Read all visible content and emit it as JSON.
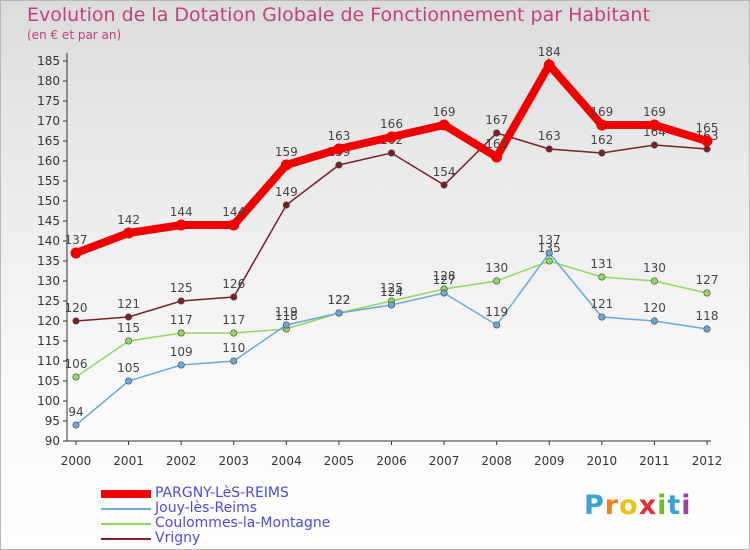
{
  "header": {
    "title": "Evolution de la Dotation Globale de Fonctionnement par Habitant",
    "subtitle": "(en € et par an)"
  },
  "logo": {
    "letters": [
      "P",
      "r",
      "o",
      "x",
      "i",
      "t",
      "i"
    ],
    "colors": [
      "#3aa0d8",
      "#f08020",
      "#e8c020",
      "#e03030",
      "#70b830",
      "#3aa0d8",
      "#a040a0"
    ]
  },
  "chart_data": {
    "type": "line",
    "title": "Evolution de la Dotation Globale de Fonctionnement par Habitant",
    "subtitle": "(en € et par an)",
    "xlabel": "",
    "ylabel": "",
    "x": [
      2000,
      2001,
      2002,
      2003,
      2004,
      2005,
      2006,
      2007,
      2008,
      2009,
      2010,
      2011,
      2012
    ],
    "ylim": [
      90,
      185
    ],
    "yticks": [
      90,
      95,
      100,
      105,
      110,
      115,
      120,
      125,
      130,
      135,
      140,
      145,
      150,
      155,
      160,
      165,
      170,
      175,
      180,
      185
    ],
    "grid": false,
    "legend_position": "bottom-left",
    "series": [
      {
        "name": "Vrigny",
        "color": "#7a1f2b",
        "values": [
          120,
          121,
          125,
          126,
          149,
          159,
          162,
          154,
          167,
          163,
          162,
          164,
          163
        ]
      },
      {
        "name": "Coulommes-la-Montagne",
        "color": "#90d860",
        "values": [
          106,
          115,
          117,
          117,
          118,
          122,
          125,
          128,
          130,
          135,
          131,
          130,
          127
        ]
      },
      {
        "name": "Jouy-lès-Reims",
        "color": "#6aaad6",
        "values": [
          94,
          105,
          109,
          110,
          119,
          122,
          124,
          127,
          119,
          137,
          121,
          120,
          118
        ]
      },
      {
        "name": "PARGNY-LèS-REIMS",
        "color": "#f00000",
        "values": [
          137,
          142,
          144,
          144,
          159,
          163,
          166,
          169,
          161,
          184,
          169,
          169,
          165
        ]
      }
    ],
    "legend_order": [
      "PARGNY-LèS-REIMS",
      "Jouy-lès-Reims",
      "Coulommes-la-Montagne",
      "Vrigny"
    ]
  }
}
